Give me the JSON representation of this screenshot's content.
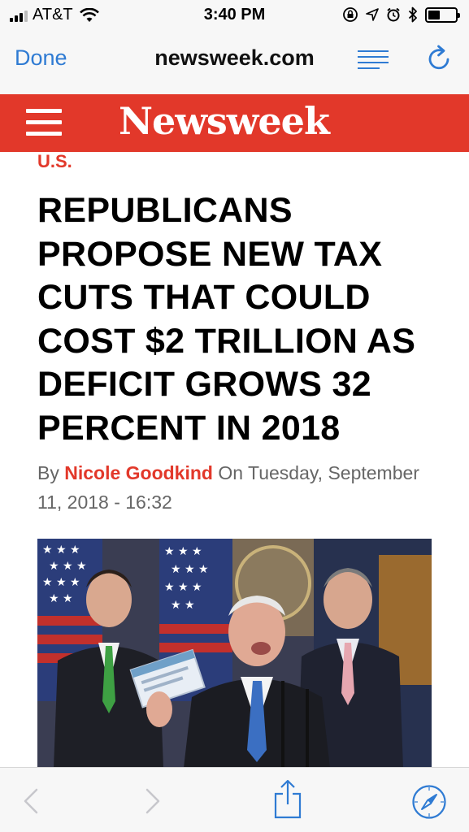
{
  "status_bar": {
    "carrier": "AT&T",
    "time": "3:40 PM",
    "battery_level": 0.45
  },
  "nav": {
    "done_label": "Done",
    "url": "newsweek.com"
  },
  "site": {
    "logo_text": "Newsweek"
  },
  "article": {
    "section": "U.S.",
    "headline": "REPUBLICANS PROPOSE NEW TAX CUTS THAT COULD COST $2 TRILLION AS DEFICIT GROWS 32 PERCENT IN 2018",
    "byline_prefix": "By",
    "author": "Nicole Goodkind",
    "byline_date": "On Tuesday, September 11, 2018 - 16:32"
  },
  "colors": {
    "brand_red": "#e2382a",
    "ios_blue": "#2f7bd3"
  },
  "icons": [
    "wifi-icon",
    "lock-rotation-icon",
    "location-icon",
    "alarm-icon",
    "bluetooth-icon",
    "battery-icon",
    "reader-view-icon",
    "reload-icon",
    "hamburger-menu-icon",
    "back-icon",
    "forward-icon",
    "share-icon",
    "safari-compass-icon"
  ]
}
